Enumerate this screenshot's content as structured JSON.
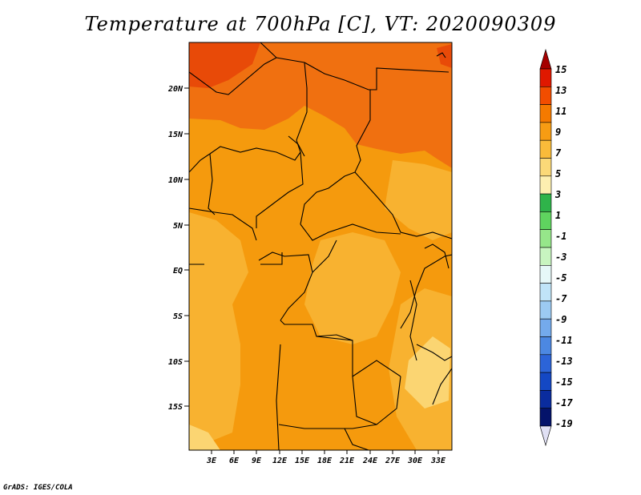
{
  "title": "Temperature at 700hPa [C], VT: 2020090309",
  "credit": "GrADS: IGES/COLA",
  "map": {
    "lat_ticks": [
      "20N",
      "15N",
      "10N",
      "5N",
      "EQ",
      "5S",
      "10S",
      "15S"
    ],
    "lon_ticks": [
      "3E",
      "6E",
      "9E",
      "12E",
      "15E",
      "18E",
      "21E",
      "24E",
      "27E",
      "30E",
      "33E"
    ]
  },
  "colorbar": {
    "labels": [
      "15",
      "13",
      "11",
      "9",
      "7",
      "5",
      "3",
      "1",
      "-1",
      "-3",
      "-5",
      "-7",
      "-9",
      "-11",
      "-13",
      "-15",
      "-17",
      "-19"
    ],
    "colors": [
      "#a50000",
      "#e01800",
      "#f24d00",
      "#f57a00",
      "#f79c13",
      "#f9bb3a",
      "#fbd978",
      "#fdefb0",
      "#2fb34a",
      "#5fd45f",
      "#96e68a",
      "#c8f5c0",
      "#e6f8f8",
      "#c0e4f8",
      "#9ccaf2",
      "#74aaec",
      "#4c88e2",
      "#2c64d8",
      "#1448c4",
      "#0a2c9e",
      "#04136a",
      "#e0e0f4"
    ]
  }
}
